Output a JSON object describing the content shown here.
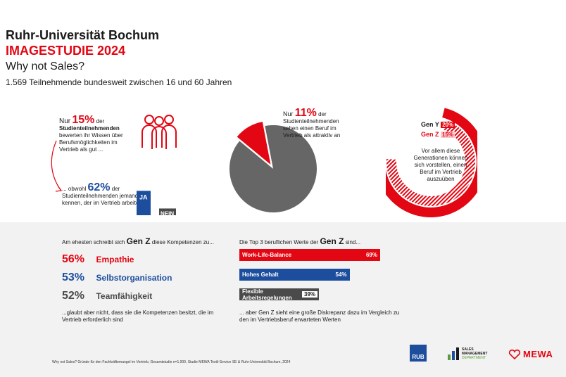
{
  "header": {
    "university": "Ruhr-Universität Bochum",
    "study": "IMAGESTUDIE 2024",
    "question": "Why not Sales?",
    "sample": "1.569 Teilnehmende bundesweit zwischen 16 und 60 Jahren"
  },
  "block1": {
    "nur": "Nur",
    "pct": "15%",
    "der": "der",
    "subject": "Studienteilnehmenden",
    "text": "bewerten ihr Wissen über Berufsmöglichkeiten im Vertrieb als gut ...",
    "obwohl": "... obwohl",
    "pct2": "62%",
    "der2": "der",
    "text2": "Studienteilnehmenden jemanden kennen, der im Vertrieb arbeitet",
    "ja_label": "JA",
    "nein_label": "NEIN",
    "ja_value": 62,
    "nein_value": 38
  },
  "block2": {
    "nur": "Nur",
    "pct": "11%",
    "der": "der",
    "text": "Studienteilnehmenden sehen einen Beruf im Vertrieb als attraktiv an",
    "pie_value": 11
  },
  "block3": {
    "geny_label": "Gen Y",
    "geny_pct": "20%",
    "geny_value": 20,
    "genz_label": "Gen Z",
    "genz_pct": "15%",
    "genz_value": 15,
    "text": "Vor allem diese Generationen können sich vorstellen, einen Beruf im Vertrieb auszuüben"
  },
  "competencies": {
    "intro_pre": "Am ehesten schreibt sich",
    "gen": "Gen Z",
    "intro_post": "diese Kompetenzen zu...",
    "items": [
      {
        "pct": "56%",
        "label": "Empathie",
        "color": "#e30613"
      },
      {
        "pct": "53%",
        "label": "Selbstorganisation",
        "color": "#1d4e9e"
      },
      {
        "pct": "52%",
        "label": "Teamfähigkeit",
        "color": "#4a4a4a"
      }
    ],
    "outro": "...glaubt aber nicht, dass sie die Kompetenzen besitzt, die im Vertrieb erforderlich sind"
  },
  "values": {
    "intro_pre": "Die Top 3 beruflichen Werte der",
    "gen": "Gen Z",
    "intro_post": "sind...",
    "outro": "... aber Gen Z sieht eine große Diskrepanz dazu im Vergleich zu den im Vertriebsberuf erwarteten Werten"
  },
  "chart_data": {
    "type": "bar",
    "categories": [
      "Work-Life-Balance",
      "Hohes Gehalt",
      "Flexible Arbeitsregelungen"
    ],
    "values": [
      69,
      54,
      39
    ],
    "labels": [
      "69%",
      "54%",
      "39%"
    ],
    "colors": [
      "#e30613",
      "#1d4e9e",
      "#4a4a4a"
    ]
  },
  "footer": {
    "source": "Why not Sales? Gründe für den Fachkräftemangel im Vertrieb, Gesamtstudie n=1.000, Studie MEWA Textil-Service SE & Ruhr-Universität Bochum, 2024"
  },
  "logos": {
    "rub": "RUB",
    "sales1": "SALES",
    "sales2": "MANAGEMENT",
    "sales3": "DEPARTMENT",
    "mewa": "MEWA"
  }
}
